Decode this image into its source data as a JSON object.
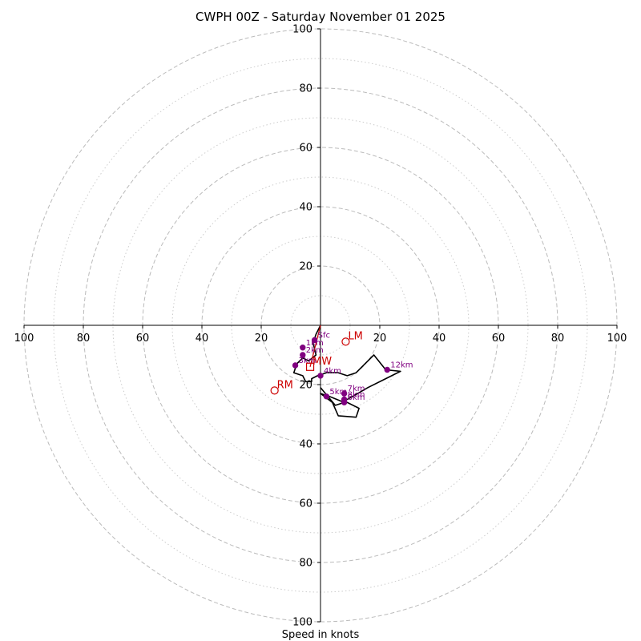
{
  "chart_data": {
    "type": "hodograph",
    "title": "CWPH 00Z - Saturday November 01 2025",
    "xlabel": "Speed in knots",
    "units": "knots",
    "axis_range": [
      -100,
      100
    ],
    "ring_speeds_dashed": [
      20,
      40,
      60,
      80,
      100
    ],
    "ring_speeds_dotted": [
      10,
      30,
      50,
      70,
      90
    ],
    "axis_ticks": {
      "top": [
        "20",
        "40",
        "60",
        "80",
        "100"
      ],
      "bottom": [
        "20",
        "40",
        "60",
        "80",
        "100"
      ],
      "left": [
        "100",
        "80",
        "60",
        "40",
        "20"
      ],
      "right": [
        "20",
        "40",
        "60",
        "80",
        "100"
      ]
    },
    "axis_tick_values": {
      "top": [
        20,
        40,
        60,
        80,
        100
      ],
      "bottom": [
        -20,
        -40,
        -60,
        -80,
        -100
      ],
      "left": [
        -100,
        -80,
        -60,
        -40,
        -20
      ],
      "right": [
        20,
        40,
        60,
        80,
        100
      ]
    },
    "hodograph_trace": [
      [
        0,
        0
      ],
      [
        -1.5,
        -3
      ],
      [
        -2.5,
        -6
      ],
      [
        -1.5,
        -10
      ],
      [
        -4,
        -12
      ],
      [
        -6,
        -11
      ],
      [
        -8,
        -13
      ],
      [
        -9,
        -16
      ],
      [
        -6,
        -17
      ],
      [
        -5,
        -19
      ],
      [
        -3,
        -19
      ],
      [
        -3,
        -18
      ],
      [
        -1,
        -17
      ],
      [
        2,
        -16
      ],
      [
        6,
        -16
      ],
      [
        9,
        -17
      ],
      [
        12,
        -16
      ],
      [
        15,
        -13
      ],
      [
        18,
        -10
      ],
      [
        22,
        -15
      ],
      [
        27,
        -15.5
      ],
      [
        22,
        -18
      ],
      [
        16,
        -21
      ],
      [
        10,
        -24.5
      ],
      [
        8,
        -25.5
      ],
      [
        13,
        -28
      ],
      [
        12,
        -31
      ],
      [
        6,
        -30.5
      ],
      [
        4,
        -26
      ],
      [
        0,
        -23
      ],
      [
        3,
        -24
      ],
      [
        8,
        -26
      ],
      [
        5,
        -27
      ],
      [
        0,
        -21
      ]
    ],
    "height_markers": [
      {
        "label": "Sfc",
        "u": -2,
        "v": -5
      },
      {
        "label": "1km",
        "u": -6,
        "v": -7.5
      },
      {
        "label": "2km",
        "u": -6,
        "v": -10
      },
      {
        "label": "3km",
        "u": -8.5,
        "v": -13.5
      },
      {
        "label": "4km",
        "u": 0,
        "v": -17
      },
      {
        "label": "5km",
        "u": 2,
        "v": -24
      },
      {
        "label": "6km",
        "u": 8,
        "v": -26
      },
      {
        "label": "7km",
        "u": 8,
        "v": -23
      },
      {
        "label": "8km",
        "u": 8,
        "v": -25
      },
      {
        "label": "12km",
        "u": 22.5,
        "v": -15
      }
    ],
    "storm_relative_helicity_trace_color": "#cc0000",
    "motion_markers": [
      {
        "label": "LM",
        "u": 8.5,
        "v": -5.5,
        "symbol": "circle"
      },
      {
        "label": "RM",
        "u": -15.5,
        "v": -22,
        "symbol": "circle"
      },
      {
        "label": "MW",
        "u": -3.5,
        "v": -14,
        "symbol": "square"
      }
    ],
    "colors": {
      "trace": "#000000",
      "height_markers": "#800080",
      "motion": "#cc0000",
      "ring": "#bbbbbb",
      "axis": "#000000"
    }
  }
}
